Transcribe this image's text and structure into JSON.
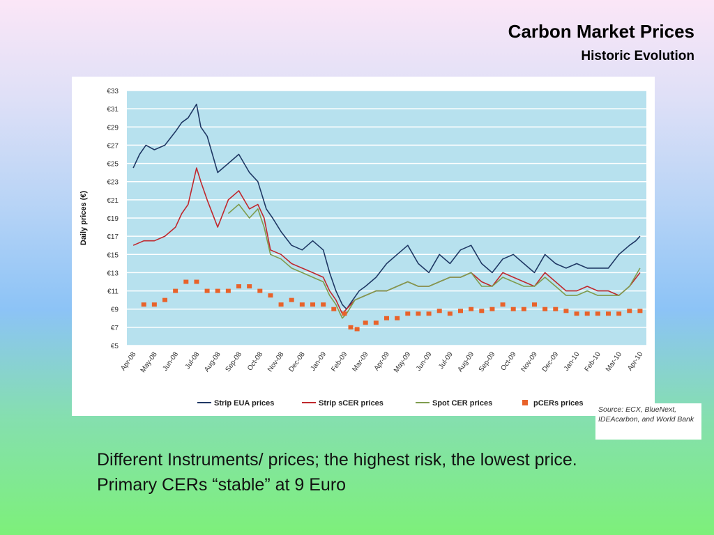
{
  "slide": {
    "title": "Carbon Market Prices",
    "subtitle": "Historic Evolution",
    "body_text": "Different Instruments/ prices; the highest risk, the lowest price. Primary CERs “stable” at 9 Euro",
    "source": "Source: ECX, BlueNext, IDEAcarbon, and World Bank",
    "background_colors": [
      "#fbe6f7",
      "#b8d4f6",
      "#7df07a"
    ]
  },
  "chart_data": {
    "type": "line",
    "title": "",
    "ylabel": "Daily prices (€)",
    "xlabel": "",
    "ylim": [
      5,
      33
    ],
    "yticks": [
      "€33",
      "€31",
      "€29",
      "€27",
      "€25",
      "€23",
      "€21",
      "€19",
      "€17",
      "€15",
      "€13",
      "€11",
      "€9",
      "€7",
      "€5"
    ],
    "categories": [
      "Apr-08",
      "May-08",
      "Jun-08",
      "Jul-08",
      "Aug-08",
      "Sep-08",
      "Oct-08",
      "Nov-08",
      "Dec-08",
      "Jan-09",
      "Feb-09",
      "Mar-09",
      "Apr-09",
      "May-09",
      "Jun-09",
      "Jul-09",
      "Aug-09",
      "Sep-09",
      "Oct-09",
      "Nov-09",
      "Dec-09",
      "Jan-10",
      "Feb-10",
      "Mar-10",
      "Apr-10"
    ],
    "grid": true,
    "legend_position": "bottom",
    "plot_background": "#b7e1ee",
    "series": [
      {
        "name": "Strip EUA prices",
        "color": "#1f3864",
        "style": "line",
        "x": [
          0,
          0.3,
          0.6,
          1,
          1.5,
          2,
          2.3,
          2.6,
          3,
          3.2,
          3.5,
          4,
          4.5,
          5,
          5.5,
          5.9,
          6.3,
          6.6,
          7,
          7.5,
          8,
          8.5,
          9,
          9.3,
          9.6,
          9.9,
          10.1,
          10.4,
          10.7,
          11,
          11.5,
          12,
          12.5,
          13,
          13.5,
          14,
          14.5,
          15,
          15.5,
          16,
          16.5,
          17,
          17.5,
          18,
          18.5,
          19,
          19.5,
          20,
          20.5,
          21,
          21.5,
          22,
          22.5,
          23,
          23.5,
          23.8,
          24
        ],
        "y": [
          24.5,
          26,
          27,
          26.5,
          27,
          28.5,
          29.5,
          30,
          31.5,
          29,
          28,
          24,
          25,
          26,
          24,
          23,
          20,
          19,
          17.5,
          16,
          15.5,
          16.5,
          15.5,
          13,
          11,
          9.5,
          9,
          10,
          11,
          11.5,
          12.5,
          14,
          15,
          16,
          14,
          13,
          15,
          14,
          15.5,
          16,
          14,
          13,
          14.5,
          15,
          14,
          13,
          15,
          14,
          13.5,
          14,
          13.5,
          13.5,
          13.5,
          15,
          16,
          16.5,
          17
        ]
      },
      {
        "name": "Strip sCER prices",
        "color": "#c0282d",
        "style": "line",
        "x": [
          0,
          0.5,
          1,
          1.5,
          2,
          2.3,
          2.6,
          3,
          3.2,
          3.5,
          4,
          4.5,
          5,
          5.5,
          5.9,
          6.2,
          6.5,
          7,
          7.5,
          8,
          8.5,
          9,
          9.3,
          9.6,
          9.9,
          10.1,
          10.5,
          11,
          11.5,
          12,
          12.5,
          13,
          13.5,
          14,
          14.5,
          15,
          15.5,
          16,
          16.5,
          17,
          17.5,
          18,
          18.5,
          19,
          19.5,
          20,
          20.5,
          21,
          21.5,
          22,
          22.5,
          23,
          23.5,
          24
        ],
        "y": [
          16,
          16.5,
          16.5,
          17,
          18,
          19.5,
          20.5,
          24.5,
          23,
          21,
          18,
          21,
          22,
          20,
          20.5,
          19,
          15.5,
          15,
          14,
          13.5,
          13,
          12.5,
          11,
          10,
          8.5,
          9,
          10,
          10.5,
          11,
          11,
          11.5,
          12,
          11.5,
          11.5,
          12,
          12.5,
          12.5,
          13,
          12,
          11.5,
          13,
          12.5,
          12,
          11.5,
          13,
          12,
          11,
          11,
          11.5,
          11,
          11,
          10.5,
          11.5,
          13
        ]
      },
      {
        "name": "Spot CER prices",
        "color": "#7f9c4e",
        "style": "line",
        "x": [
          4.5,
          5,
          5.5,
          5.9,
          6.2,
          6.5,
          7,
          7.5,
          8,
          8.5,
          9,
          9.3,
          9.6,
          9.9,
          10.1,
          10.5,
          11,
          11.5,
          12,
          12.5,
          13,
          13.5,
          14,
          14.5,
          15,
          15.5,
          16,
          16.5,
          17,
          17.5,
          18,
          18.5,
          19,
          19.5,
          20,
          20.5,
          21,
          21.5,
          22,
          22.5,
          23,
          23.5,
          24
        ],
        "y": [
          19.5,
          20.5,
          19,
          20,
          18,
          15,
          14.5,
          13.5,
          13,
          12.5,
          12,
          10.5,
          9.5,
          8,
          8.5,
          10,
          10.5,
          11,
          11,
          11.5,
          12,
          11.5,
          11.5,
          12,
          12.5,
          12.5,
          13,
          11.5,
          11.5,
          12.5,
          12,
          11.5,
          11.5,
          12.5,
          11.5,
          10.5,
          10.5,
          11,
          10.5,
          10.5,
          10.5,
          11.5,
          13.5
        ]
      },
      {
        "name": "pCERs prices",
        "color": "#e8622a",
        "style": "markers",
        "x": [
          0.5,
          1,
          1.5,
          2,
          2.5,
          3,
          3.5,
          4,
          4.5,
          5,
          5.5,
          6,
          6.5,
          7,
          7.5,
          8,
          8.5,
          9,
          9.5,
          10,
          10.3,
          10.6,
          11,
          11.5,
          12,
          12.5,
          13,
          13.5,
          14,
          14.5,
          15,
          15.5,
          16,
          16.5,
          17,
          17.5,
          18,
          18.5,
          19,
          19.5,
          20,
          20.5,
          21,
          21.5,
          22,
          22.5,
          23,
          23.5,
          24
        ],
        "y": [
          9.5,
          9.5,
          10,
          11,
          12,
          12,
          11,
          11,
          11,
          11.5,
          11.5,
          11,
          10.5,
          9.5,
          10,
          9.5,
          9.5,
          9.5,
          9,
          8.5,
          7,
          6.8,
          7.5,
          7.5,
          8,
          8,
          8.5,
          8.5,
          8.5,
          8.8,
          8.5,
          8.8,
          9,
          8.8,
          9,
          9.5,
          9,
          9,
          9.5,
          9,
          9,
          8.8,
          8.5,
          8.5,
          8.5,
          8.5,
          8.5,
          8.8,
          8.8
        ]
      }
    ]
  }
}
